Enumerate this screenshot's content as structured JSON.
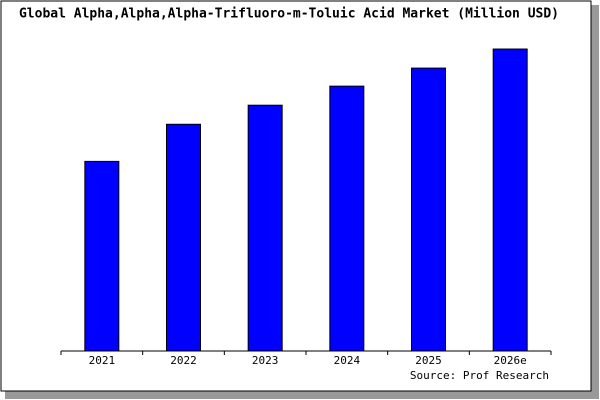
{
  "chart_data": {
    "type": "bar",
    "title": "Global Alpha,Alpha,Alpha-Trifluoro-m-Toluic Acid Market (Million USD)",
    "source": "Source: Prof Research",
    "categories": [
      "2021",
      "2022",
      "2023",
      "2024",
      "2025",
      "2026e"
    ],
    "values": [
      189,
      226,
      245,
      264,
      282,
      301
    ],
    "color": "#0000ff",
    "ylim": [
      0,
      310
    ]
  }
}
